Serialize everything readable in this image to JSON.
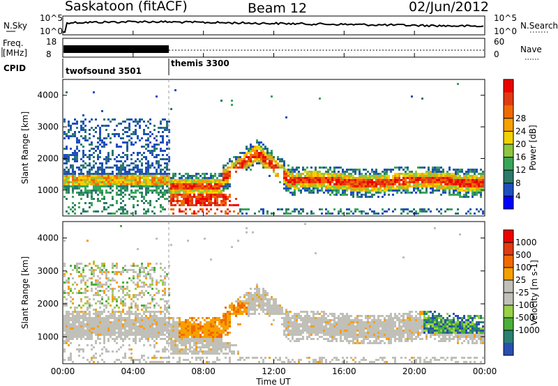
{
  "header": {
    "station": "Saskatoon (fitACF)",
    "beam": "Beam 12",
    "date": "02/Jun/2012"
  },
  "status_panels": {
    "nsky_label": "N.Sky",
    "nsearch_label": "N.Search",
    "freq_label_line1": "Freq.",
    "freq_label_line2": "[MHz]",
    "nave_label": "Nave",
    "cpid_label": "CPID",
    "noise_left_ticks": [
      "10^5",
      "10^0"
    ],
    "noise_right_ticks": [
      "10^5",
      "10^0"
    ],
    "freq_left_ticks": [
      "18",
      "8"
    ],
    "nave_right_ticks": [
      "60",
      "0"
    ],
    "cpid_segments": [
      {
        "name": "twofsound 3501",
        "start_hour": 0,
        "end_hour": 6
      },
      {
        "name": "themis 3300",
        "start_hour": 6,
        "end_hour": 24
      }
    ]
  },
  "chart_data": [
    {
      "type": "heatmap",
      "quantity": "Power",
      "ylabel": "Slant Range [km]",
      "xlabel": "Time UT",
      "xlim_hours": [
        0,
        24
      ],
      "ylim_km": [
        180,
        4500
      ],
      "x_tick_labels": [
        "00:00",
        "04:00",
        "08:00",
        "12:00",
        "16:00",
        "20:00",
        "00:00"
      ],
      "y_tick_labels": [
        "1000",
        "2000",
        "3000",
        "4000"
      ],
      "colorbar": {
        "label": "Power [dB]",
        "tick_labels": [
          "4",
          "8",
          "12",
          "16",
          "20",
          "24",
          "28"
        ],
        "colors": [
          "#0000ff",
          "#1f4fbd",
          "#2b7a6a",
          "#3aa65a",
          "#8dc63f",
          "#f2d200",
          "#f7a100",
          "#f06a00",
          "#e23a10",
          "#ee0000"
        ]
      },
      "description_bands": [
        {
          "start_hour": 0,
          "end_hour": 6,
          "range_km": [
            1200,
            1750
          ],
          "level": "medium-high"
        },
        {
          "start_hour": 6,
          "end_hour": 10,
          "range_km": [
            900,
            1700
          ],
          "level": "high"
        },
        {
          "start_hour": 10,
          "end_hour": 24,
          "range_km": [
            1100,
            1700
          ],
          "level": "high"
        }
      ]
    },
    {
      "type": "heatmap",
      "quantity": "Velocity",
      "ylabel": "Slant Range [km]",
      "xlabel": "Time UT",
      "xlim_hours": [
        0,
        24
      ],
      "ylim_km": [
        180,
        4500
      ],
      "x_tick_labels": [
        "00:00",
        "04:00",
        "08:00",
        "12:00",
        "16:00",
        "20:00",
        "00:00"
      ],
      "y_tick_labels": [
        "1000",
        "2000",
        "3000",
        "4000"
      ],
      "colorbar": {
        "label": "Velocity [m s-1]",
        "tick_labels": [
          "1000",
          "500",
          "100",
          "25",
          "-25",
          "-100",
          "-500",
          "-1000"
        ],
        "colors": [
          "#2a4fb0",
          "#2a8070",
          "#4ab03a",
          "#98d048",
          "#c0c0b8",
          "#c0c0b8",
          "#f6a000",
          "#f06a00",
          "#e23a10",
          "#ee0000"
        ]
      }
    }
  ]
}
